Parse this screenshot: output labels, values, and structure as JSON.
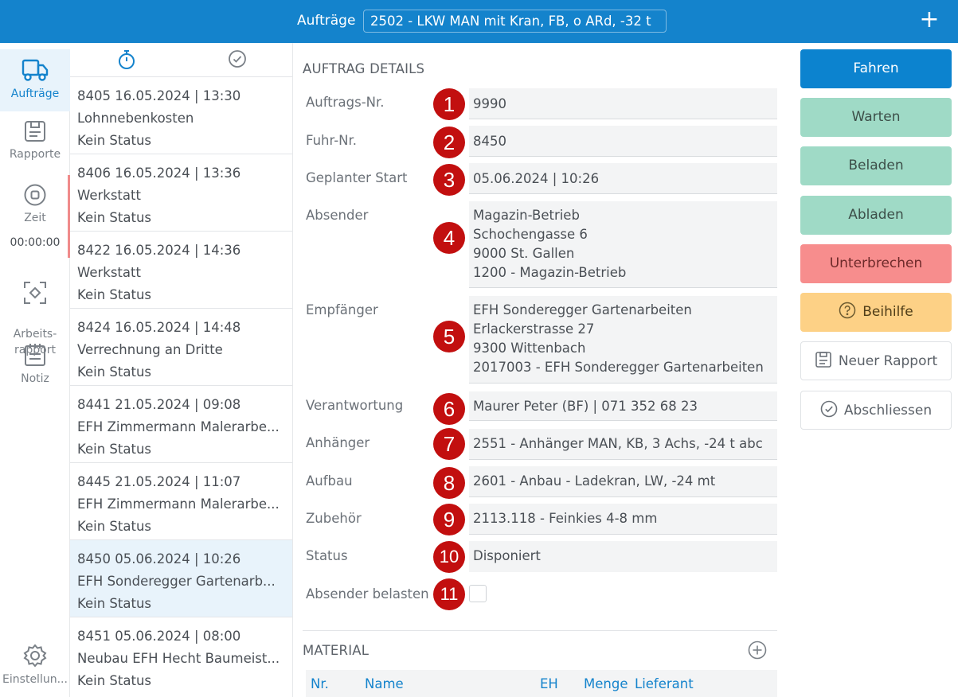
{
  "header": {
    "title": "Aufträge",
    "vehicle": "2502 - LKW MAN mit Kran, FB, o ARd, -32 t",
    "add_icon": "plus-icon"
  },
  "sidebar": {
    "items": [
      {
        "label": "Aufträge",
        "icon": "truck-icon"
      },
      {
        "label": "Rapporte",
        "icon": "clipboard-icon"
      },
      {
        "label": "Zeit",
        "icon": "stop-circle-icon"
      },
      {
        "label": "Arbeits-\nrapport",
        "icon": "scan-focus-icon"
      },
      {
        "label": "Notiz",
        "icon": "notepad-icon"
      },
      {
        "label": "Einstellun...",
        "icon": "gear-icon"
      }
    ],
    "timer": "00:00:00"
  },
  "list": {
    "tabs": [
      {
        "icon": "stopwatch-icon"
      },
      {
        "icon": "check-circle-icon"
      }
    ],
    "items": [
      {
        "line1": "8405  16.05.2024 | 13:30",
        "line2": "Lohnnebenkosten",
        "line3": "Kein Status"
      },
      {
        "line1": "8406  16.05.2024 | 13:36",
        "line2": "Werkstatt",
        "line3": "Kein Status"
      },
      {
        "line1": "8422  16.05.2024 | 14:36",
        "line2": "Werkstatt",
        "line3": "Kein Status"
      },
      {
        "line1": "8424  16.05.2024 | 14:48",
        "line2": "Verrechnung an Dritte",
        "line3": "Kein Status"
      },
      {
        "line1": "8441  21.05.2024 | 09:08",
        "line2": "EFH Zimmermann Malerarbe...",
        "line3": "Kein Status"
      },
      {
        "line1": "8445  21.05.2024 | 11:07",
        "line2": "EFH Zimmermann Malerarbe...",
        "line3": "Kein Status"
      },
      {
        "line1": "8450  05.06.2024 | 10:26",
        "line2": "EFH Sonderegger Gartenarb...",
        "line3": "Kein Status"
      },
      {
        "line1": "8451  05.06.2024 | 08:00",
        "line2": "Neubau EFH Hecht Baumeist...",
        "line3": "Kein Status"
      }
    ]
  },
  "details": {
    "section_title": "AUFTRAG DETAILS",
    "fields": [
      {
        "label": "Auftrags-Nr.",
        "badge": "1",
        "value": "9990"
      },
      {
        "label": "Fuhr-Nr.",
        "badge": "2",
        "value": "8450"
      },
      {
        "label": "Geplanter Start",
        "badge": "3",
        "value": "05.06.2024 | 10:26"
      },
      {
        "label": "Absender",
        "badge": "4",
        "lines": [
          "Magazin-Betrieb",
          "Schochengasse 6",
          "9000 St. Gallen",
          "1200 - Magazin-Betrieb"
        ]
      },
      {
        "label": "Empfänger",
        "badge": "5",
        "lines": [
          "EFH Sonderegger Gartenarbeiten",
          "Erlackerstrasse 27",
          "9300 Wittenbach",
          "2017003 - EFH Sonderegger Gartenarbeiten"
        ]
      },
      {
        "label": "Verantwortung",
        "badge": "6",
        "value": "Maurer Peter (BF) | 071 352 68 23"
      },
      {
        "label": "Anhänger",
        "badge": "7",
        "value": "2551 - Anhänger MAN, KB, 3 Achs, -24 t abc"
      },
      {
        "label": "Aufbau",
        "badge": "8",
        "value": "2601 - Anbau - Ladekran, LW, -24 mt"
      },
      {
        "label": "Zubehör",
        "badge": "9",
        "value": "2113.118 - Feinkies 4-8 mm"
      },
      {
        "label": "Status",
        "badge": "10",
        "value": "Disponiert"
      },
      {
        "label": "Absender belasten",
        "badge": "11"
      }
    ],
    "material": {
      "title": "MATERIAL",
      "columns": [
        "Nr.",
        "Name",
        "EH",
        "Menge",
        "Lieferant"
      ]
    }
  },
  "actions": {
    "buttons": [
      {
        "label": "Fahren"
      },
      {
        "label": "Warten"
      },
      {
        "label": "Beladen"
      },
      {
        "label": "Abladen"
      },
      {
        "label": "Unterbrechen"
      },
      {
        "label": "Beihilfe",
        "icon": "question-circle-icon"
      },
      {
        "label": "Neuer Rapport",
        "icon": "clipboard-icon"
      },
      {
        "label": "Abschliessen",
        "icon": "check-circle-icon"
      }
    ]
  },
  "colors": {
    "primary": "#1483cc",
    "teal": "#9fdac6",
    "danger": "#f78d8d",
    "warning": "#fdd186",
    "badge": "#c20f0f"
  }
}
